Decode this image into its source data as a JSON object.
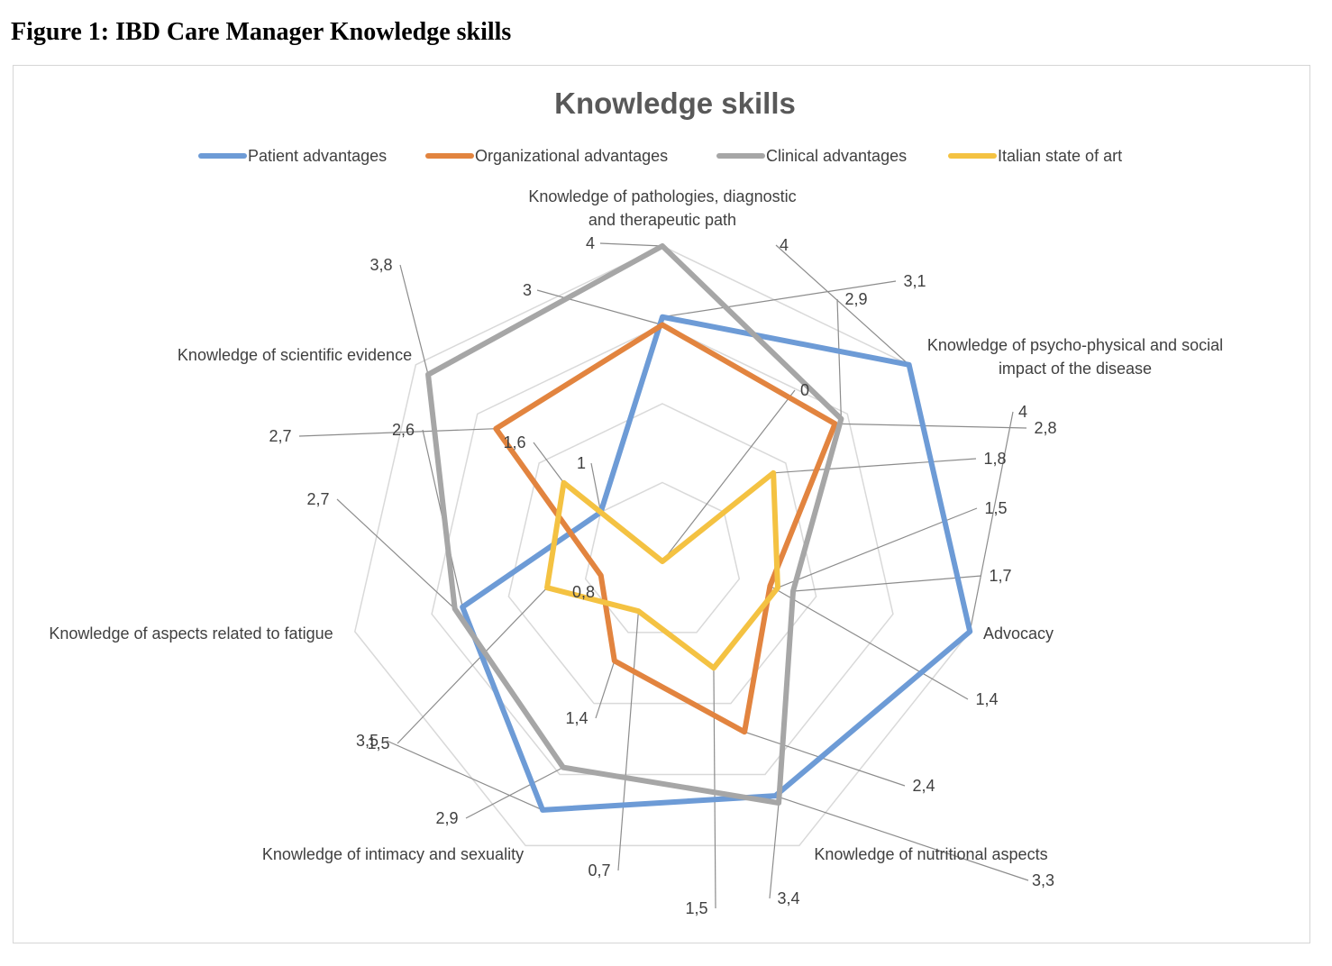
{
  "caption": "Figure 1: IBD Care Manager Knowledge skills",
  "chart_data": {
    "type": "radar",
    "title": "Knowledge skills",
    "legend_position": "top",
    "grid": true,
    "rlim": [
      0,
      4
    ],
    "categories": [
      "Knowledge of pathologies, diagnostic and therapeutic path",
      "Knowledge of psycho-physical and social impact of the disease",
      "Advocacy",
      "Knowledge of nutritional aspects",
      "Knowledge of intimacy and sexuality",
      "Knowledge of aspects related to fatigue",
      "Knowledge of scientific evidence"
    ],
    "category_lines": [
      [
        "Knowledge of pathologies, diagnostic",
        "and therapeutic path"
      ],
      [
        "Knowledge of psycho-physical and social",
        "impact of the disease"
      ],
      [
        "Advocacy"
      ],
      [
        "Knowledge of nutritional aspects"
      ],
      [
        "Knowledge of intimacy and sexuality"
      ],
      [
        "Knowledge of aspects related to fatigue"
      ],
      [
        "Knowledge of scientific evidence"
      ]
    ],
    "series": [
      {
        "name": "Patient advantages",
        "color": "#6d9bd6",
        "values": [
          3.1,
          4,
          4,
          3.3,
          3.5,
          2.6,
          1
        ],
        "labels": [
          "3,1",
          "4",
          "4",
          "3,3",
          "3,5",
          "2,6",
          "1"
        ]
      },
      {
        "name": "Organizational advantages",
        "color": "#e2843f",
        "values": [
          3,
          2.8,
          1.4,
          2.4,
          1.4,
          0.8,
          2.7
        ],
        "labels": [
          "3",
          "2,8",
          "1,4",
          "2,4",
          "1,4",
          "0,8",
          "2,7"
        ]
      },
      {
        "name": "Clinical advantages",
        "color": "#a6a6a6",
        "values": [
          4,
          2.9,
          1.7,
          3.4,
          2.9,
          2.7,
          3.8
        ],
        "labels": [
          "4",
          "2,9",
          "1,7",
          "3,4",
          "2,9",
          "2,7",
          "3,8"
        ]
      },
      {
        "name": "Italian state of art",
        "color": "#f4c242",
        "values": [
          0,
          1.8,
          1.5,
          1.5,
          0.7,
          1.5,
          1.6
        ],
        "labels": [
          "0",
          "1,8",
          "1,5",
          "1,5",
          "0,7",
          "1,5",
          "1,6"
        ]
      }
    ]
  }
}
